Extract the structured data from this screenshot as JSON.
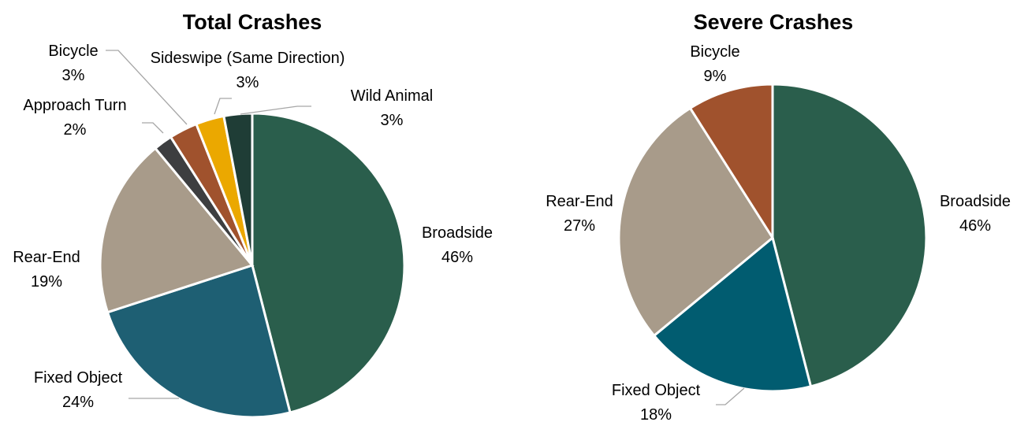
{
  "chart_data": [
    {
      "type": "pie",
      "title": "Total Crashes",
      "slices": [
        {
          "label": "Broadside",
          "value": 46,
          "value_label": "46%",
          "color": "#2a5e4c"
        },
        {
          "label": "Fixed Object",
          "value": 24,
          "value_label": "24%",
          "color": "#1e5f73"
        },
        {
          "label": "Rear-End",
          "value": 19,
          "value_label": "19%",
          "color": "#a89b8a"
        },
        {
          "label": "Approach Turn",
          "value": 2,
          "value_label": "2%",
          "color": "#3d3e40"
        },
        {
          "label": "Bicycle",
          "value": 3,
          "value_label": "3%",
          "color": "#a0522d"
        },
        {
          "label": "Sideswipe (Same Direction)",
          "value": 3,
          "value_label": "3%",
          "color": "#eba800"
        },
        {
          "label": "Wild Animal",
          "value": 3,
          "value_label": "3%",
          "color": "#1f3d36"
        }
      ]
    },
    {
      "type": "pie",
      "title": "Severe Crashes",
      "slices": [
        {
          "label": "Broadside",
          "value": 46,
          "value_label": "46%",
          "color": "#2a5e4c"
        },
        {
          "label": "Fixed Object",
          "value": 18,
          "value_label": "18%",
          "color": "#015c70"
        },
        {
          "label": "Rear-End",
          "value": 27,
          "value_label": "27%",
          "color": "#a89b8a"
        },
        {
          "label": "Bicycle",
          "value": 9,
          "value_label": "9%",
          "color": "#a0522d"
        }
      ]
    }
  ]
}
